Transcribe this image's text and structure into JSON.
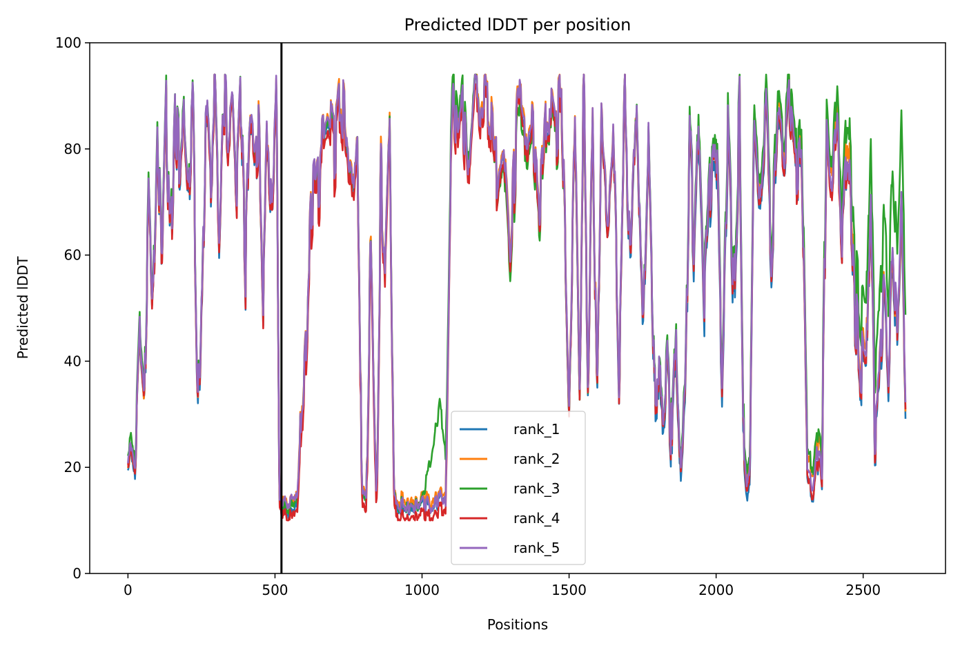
{
  "chart_data": {
    "type": "line",
    "title": "Predicted lDDT per position",
    "xlabel": "Positions",
    "ylabel": "Predicted lDDT",
    "xlim": [
      -130,
      2780
    ],
    "ylim": [
      0,
      100
    ],
    "xticks": [
      0,
      500,
      1000,
      1500,
      2000,
      2500
    ],
    "yticks": [
      0,
      20,
      40,
      60,
      80,
      100
    ],
    "grid": false,
    "legend_position": "lower-center",
    "chain_break_x": 522,
    "chain_break_color": "#000000",
    "series": [
      {
        "name": "rank_1",
        "color": "#1f77b4",
        "offset": [
          [
            0,
            -1.5
          ],
          [
            500,
            -2
          ],
          [
            1100,
            0
          ],
          [
            1600,
            -2
          ],
          [
            2000,
            -3
          ],
          [
            2400,
            -1.5
          ],
          [
            2640,
            -3
          ]
        ]
      },
      {
        "name": "rank_2",
        "color": "#ff7f0e",
        "offset": [
          [
            0,
            -1
          ],
          [
            500,
            0
          ],
          [
            1100,
            1
          ],
          [
            1600,
            0
          ],
          [
            1900,
            -1
          ],
          [
            2200,
            2
          ],
          [
            2450,
            2.5
          ],
          [
            2640,
            -2
          ]
        ]
      },
      {
        "name": "rank_3",
        "color": "#2ca02c",
        "offset": [
          [
            0,
            1.5
          ],
          [
            500,
            -1
          ],
          [
            1000,
            0
          ],
          [
            1060,
            18
          ],
          [
            1090,
            4
          ],
          [
            1300,
            -4
          ],
          [
            1500,
            -2
          ],
          [
            2000,
            2
          ],
          [
            2400,
            4
          ],
          [
            2550,
            12
          ],
          [
            2640,
            16
          ]
        ]
      },
      {
        "name": "rank_4",
        "color": "#d62728",
        "offset": [
          [
            0,
            -1
          ],
          [
            500,
            -2
          ],
          [
            600,
            -3
          ],
          [
            1100,
            -2
          ],
          [
            1400,
            -2
          ],
          [
            2000,
            -1
          ],
          [
            2400,
            -2
          ],
          [
            2640,
            -1
          ]
        ]
      },
      {
        "name": "rank_5",
        "color": "#9467bd",
        "offset": [
          [
            0,
            0
          ],
          [
            2640,
            0
          ]
        ]
      }
    ],
    "base_profile": {
      "x": [
        0,
        10,
        25,
        40,
        55,
        70,
        85,
        100,
        115,
        130,
        145,
        160,
        175,
        190,
        205,
        220,
        235,
        245,
        255,
        265,
        280,
        295,
        310,
        325,
        340,
        355,
        370,
        385,
        400,
        415,
        430,
        445,
        460,
        475,
        490,
        505,
        515,
        530,
        550,
        575,
        600,
        625,
        650,
        675,
        700,
        725,
        750,
        765,
        780,
        795,
        810,
        825,
        845,
        860,
        875,
        890,
        905,
        920,
        940,
        960,
        980,
        1000,
        1020,
        1040,
        1060,
        1080,
        1095,
        1105,
        1120,
        1140,
        1160,
        1180,
        1200,
        1225,
        1250,
        1275,
        1300,
        1325,
        1350,
        1375,
        1400,
        1425,
        1450,
        1475,
        1500,
        1520,
        1535,
        1550,
        1565,
        1580,
        1595,
        1610,
        1630,
        1650,
        1670,
        1690,
        1710,
        1730,
        1750,
        1770,
        1790,
        1805,
        1820,
        1835,
        1850,
        1865,
        1880,
        1895,
        1910,
        1925,
        1940,
        1960,
        1980,
        2000,
        2020,
        2040,
        2060,
        2080,
        2095,
        2105,
        2115,
        2130,
        2150,
        2170,
        2190,
        2210,
        2230,
        2250,
        2270,
        2290,
        2310,
        2330,
        2345,
        2360,
        2375,
        2390,
        2410,
        2430,
        2450,
        2470,
        2490,
        2510,
        2525,
        2540,
        2555,
        2570,
        2585,
        2600,
        2615,
        2630,
        2645
      ],
      "y": [
        22,
        24,
        20,
        45,
        33,
        73,
        48,
        85,
        55,
        88,
        60,
        86,
        78,
        88,
        72,
        90,
        40,
        32,
        60,
        89,
        75,
        90,
        62,
        93,
        82,
        90,
        72,
        91,
        58,
        88,
        80,
        86,
        52,
        85,
        70,
        91,
        14,
        14,
        13,
        14,
        40,
        70,
        75,
        85,
        80,
        90,
        75,
        72,
        88,
        16,
        15,
        65,
        14,
        75,
        60,
        88,
        14,
        13,
        13,
        13,
        13,
        13,
        13,
        13,
        14,
        14,
        70,
        90,
        82,
        89,
        70,
        91,
        85,
        90,
        75,
        86,
        60,
        88,
        80,
        85,
        70,
        88,
        82,
        90,
        35,
        90,
        38,
        92,
        36,
        89,
        32,
        88,
        70,
        85,
        40,
        90,
        58,
        91,
        44,
        85,
        36,
        35,
        28,
        40,
        24,
        45,
        21,
        30,
        82,
        62,
        90,
        52,
        72,
        84,
        40,
        85,
        50,
        87,
        22,
        16,
        20,
        87,
        72,
        88,
        60,
        85,
        75,
        88,
        76,
        82,
        20,
        16,
        26,
        18,
        83,
        70,
        86,
        64,
        80,
        52,
        40,
        36,
        76,
        27,
        35,
        52,
        36,
        62,
        42,
        68,
        30
      ]
    }
  }
}
